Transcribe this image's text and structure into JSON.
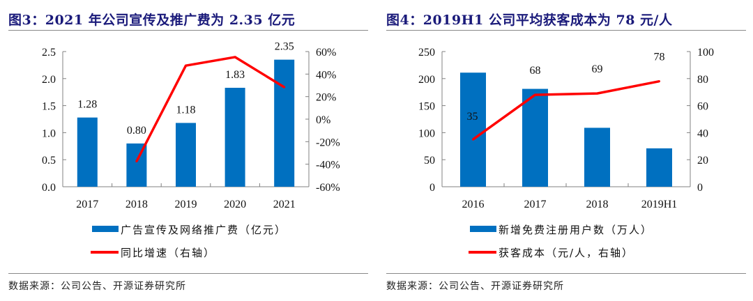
{
  "colors": {
    "bar": "#0070c0",
    "line": "#ff0000",
    "title": "#1a1a7a",
    "axis": "#808080"
  },
  "chart_data": [
    {
      "type": "bar+line",
      "title": "图3：2021 年公司宣传及推广费为 2.35 亿元",
      "categories": [
        "2017",
        "2018",
        "2019",
        "2020",
        "2021"
      ],
      "series": [
        {
          "name": "广告宣传及网络推广费（亿元）",
          "type": "bar",
          "axis": "left",
          "values": [
            1.28,
            0.8,
            1.18,
            1.83,
            2.35
          ],
          "labels": [
            "1.28",
            "0.80",
            "1.18",
            "1.83",
            "2.35"
          ]
        },
        {
          "name": "同比增速（右轴）",
          "type": "line",
          "axis": "right",
          "values": [
            null,
            -37.5,
            47.5,
            55.1,
            28.4
          ]
        }
      ],
      "left_axis": {
        "min": 0,
        "max": 2.5,
        "ticks": [
          "0.0",
          "0.5",
          "1.0",
          "1.5",
          "2.0",
          "2.5"
        ],
        "tick_values": [
          0,
          0.5,
          1.0,
          1.5,
          2.0,
          2.5
        ]
      },
      "right_axis": {
        "min": -60,
        "max": 60,
        "ticks": [
          "-60%",
          "-40%",
          "-20%",
          "0%",
          "20%",
          "40%",
          "60%"
        ],
        "tick_values": [
          -60,
          -40,
          -20,
          0,
          20,
          40,
          60
        ]
      },
      "legend_position": "bottom",
      "grid": false,
      "source": "数据来源：公司公告、开源证券研究所"
    },
    {
      "type": "bar+line",
      "title": "图4：2019H1 公司平均获客成本为 78 元/人",
      "categories": [
        "2016",
        "2017",
        "2018",
        "2019H1"
      ],
      "series": [
        {
          "name": "新增免费注册用户数（万人）",
          "type": "bar",
          "axis": "left",
          "values": [
            211,
            181,
            109,
            71
          ]
        },
        {
          "name": "获客成本（元/人，右轴）",
          "type": "line",
          "axis": "right",
          "values": [
            35,
            68,
            69,
            78
          ],
          "labels": [
            "35",
            "68",
            "69",
            "78"
          ]
        }
      ],
      "left_axis": {
        "min": 0,
        "max": 250,
        "ticks": [
          "0",
          "50",
          "100",
          "150",
          "200",
          "250"
        ],
        "tick_values": [
          0,
          50,
          100,
          150,
          200,
          250
        ]
      },
      "right_axis": {
        "min": 0,
        "max": 100,
        "ticks": [
          "0",
          "20",
          "40",
          "60",
          "80",
          "100"
        ],
        "tick_values": [
          0,
          20,
          40,
          60,
          80,
          100
        ]
      },
      "legend_position": "bottom",
      "grid": false,
      "source": "数据来源：公司公告、开源证券研究所"
    }
  ]
}
